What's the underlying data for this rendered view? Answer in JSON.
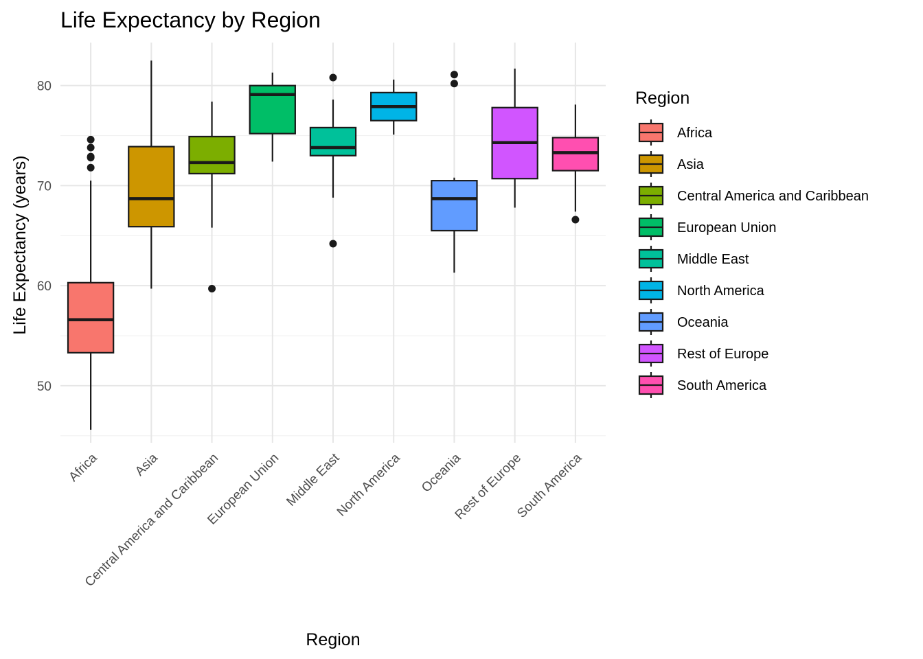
{
  "chart_data": {
    "type": "boxplot",
    "title": "Life Expectancy by Region",
    "xlabel": "Region",
    "ylabel": "Life Expectancy (years)",
    "ylim": [
      44.3,
      84.3
    ],
    "yticks": [
      50,
      60,
      70,
      80
    ],
    "grid": true,
    "legend": {
      "title": "Region",
      "position": "right"
    },
    "categories": [
      "Africa",
      "Asia",
      "Central America and Caribbean",
      "European Union",
      "Middle East",
      "North America",
      "Oceania",
      "Rest of Europe",
      "South America"
    ],
    "colors": [
      "#F8766D",
      "#CD9600",
      "#7CAE00",
      "#00BE67",
      "#00BFC4",
      "#00A9FF",
      "#C77CFF",
      "#FF61CC",
      "#00C19A"
    ],
    "series": [
      {
        "name": "Africa",
        "color": "#F8766D",
        "min": 45.6,
        "q1": 53.3,
        "median": 56.6,
        "q3": 60.3,
        "max": 70.5,
        "outliers": [
          71.8,
          72.8,
          72.9,
          73.8,
          74.6
        ]
      },
      {
        "name": "Asia",
        "color": "#CD9600",
        "min": 59.7,
        "q1": 65.9,
        "median": 68.7,
        "q3": 73.9,
        "max": 82.5,
        "outliers": []
      },
      {
        "name": "Central America and Caribbean",
        "color": "#7CAE00",
        "min": 65.8,
        "q1": 71.2,
        "median": 72.3,
        "q3": 74.9,
        "max": 78.4,
        "outliers": [
          59.7
        ]
      },
      {
        "name": "European Union",
        "color": "#00BE67",
        "min": 72.4,
        "q1": 75.2,
        "median": 79.1,
        "q3": 80.0,
        "max": 81.3,
        "outliers": []
      },
      {
        "name": "Middle East",
        "color": "#00C19A",
        "min": 68.8,
        "q1": 73.0,
        "median": 73.8,
        "q3": 75.8,
        "max": 78.6,
        "outliers": [
          64.2,
          80.8
        ]
      },
      {
        "name": "North America",
        "color": "#00B4E6",
        "min": 75.1,
        "q1": 76.5,
        "median": 77.9,
        "q3": 79.3,
        "max": 80.6,
        "outliers": []
      },
      {
        "name": "Oceania",
        "color": "#619CFF",
        "min": 61.3,
        "q1": 65.5,
        "median": 68.7,
        "q3": 70.5,
        "max": 70.8,
        "outliers": [
          80.2,
          81.1
        ]
      },
      {
        "name": "Rest of Europe",
        "color": "#D155FF",
        "min": 67.8,
        "q1": 70.7,
        "median": 74.3,
        "q3": 77.8,
        "max": 81.7,
        "outliers": []
      },
      {
        "name": "South America",
        "color": "#FF4FB0",
        "min": 67.4,
        "q1": 71.5,
        "median": 73.3,
        "q3": 74.8,
        "max": 78.1,
        "outliers": [
          66.6
        ]
      }
    ]
  }
}
